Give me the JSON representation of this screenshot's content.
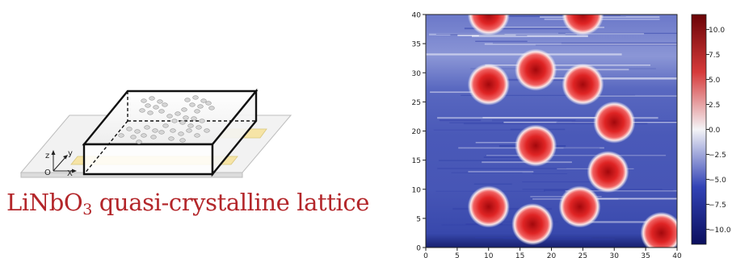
{
  "device_diagram": {
    "axes": {
      "z": "z",
      "y": "y",
      "x": "X",
      "origin": "O"
    },
    "caption": {
      "main": "LiNbO",
      "sub": "3",
      "rest": " quasi-crystalline lattice"
    }
  },
  "chart_data": {
    "type": "heatmap",
    "xlim": [
      0,
      40
    ],
    "ylim": [
      0,
      40
    ],
    "x_ticks": [
      "0",
      "5",
      "10",
      "15",
      "20",
      "25",
      "30",
      "35",
      "40"
    ],
    "y_ticks": [
      "0",
      "5",
      "10",
      "15",
      "20",
      "25",
      "30",
      "35",
      "40"
    ],
    "colorbar": {
      "min": -11.5,
      "max": 11.5,
      "ticks": [
        "10.0",
        "7.5",
        "5.0",
        "2.5",
        "0.0",
        "−2.5",
        "−5.0",
        "−7.5",
        "−10.0"
      ],
      "tick_values": [
        10,
        7.5,
        5,
        2.5,
        0,
        -2.5,
        -5,
        -7.5,
        -10
      ]
    },
    "background_level": -6,
    "spots": [
      {
        "x": 10,
        "y": 28,
        "value": 10
      },
      {
        "x": 17.5,
        "y": 30.5,
        "value": 11
      },
      {
        "x": 25,
        "y": 28,
        "value": 10
      },
      {
        "x": 30,
        "y": 21.5,
        "value": 10
      },
      {
        "x": 17.5,
        "y": 17.5,
        "value": 10
      },
      {
        "x": 29,
        "y": 13,
        "value": 11
      },
      {
        "x": 10,
        "y": 7,
        "value": 10
      },
      {
        "x": 17,
        "y": 4,
        "value": 11
      },
      {
        "x": 24.5,
        "y": 7,
        "value": 10
      },
      {
        "x": 37.5,
        "y": 2.5,
        "value": 10
      },
      {
        "x": 10,
        "y": 40,
        "value": 8
      },
      {
        "x": 25,
        "y": 40,
        "value": 8
      }
    ]
  }
}
